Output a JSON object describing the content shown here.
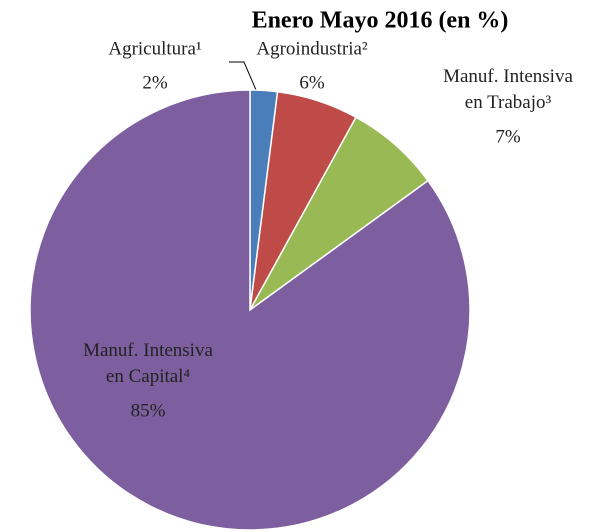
{
  "chart_data": {
    "type": "pie",
    "title": "Enero  Mayo 2016 (en %)",
    "categories": [
      "Agricultura¹",
      "Agroindustria²",
      "Manuf. Intensiva en Trabajo³",
      "Manuf. Intensiva en Capital⁴"
    ],
    "values": [
      2,
      6,
      7,
      85
    ],
    "value_labels": [
      "2%",
      "6%",
      "7%",
      "85%"
    ],
    "colors": [
      "#4a7ebb",
      "#be4b48",
      "#98b954",
      "#7d5fa0"
    ]
  }
}
